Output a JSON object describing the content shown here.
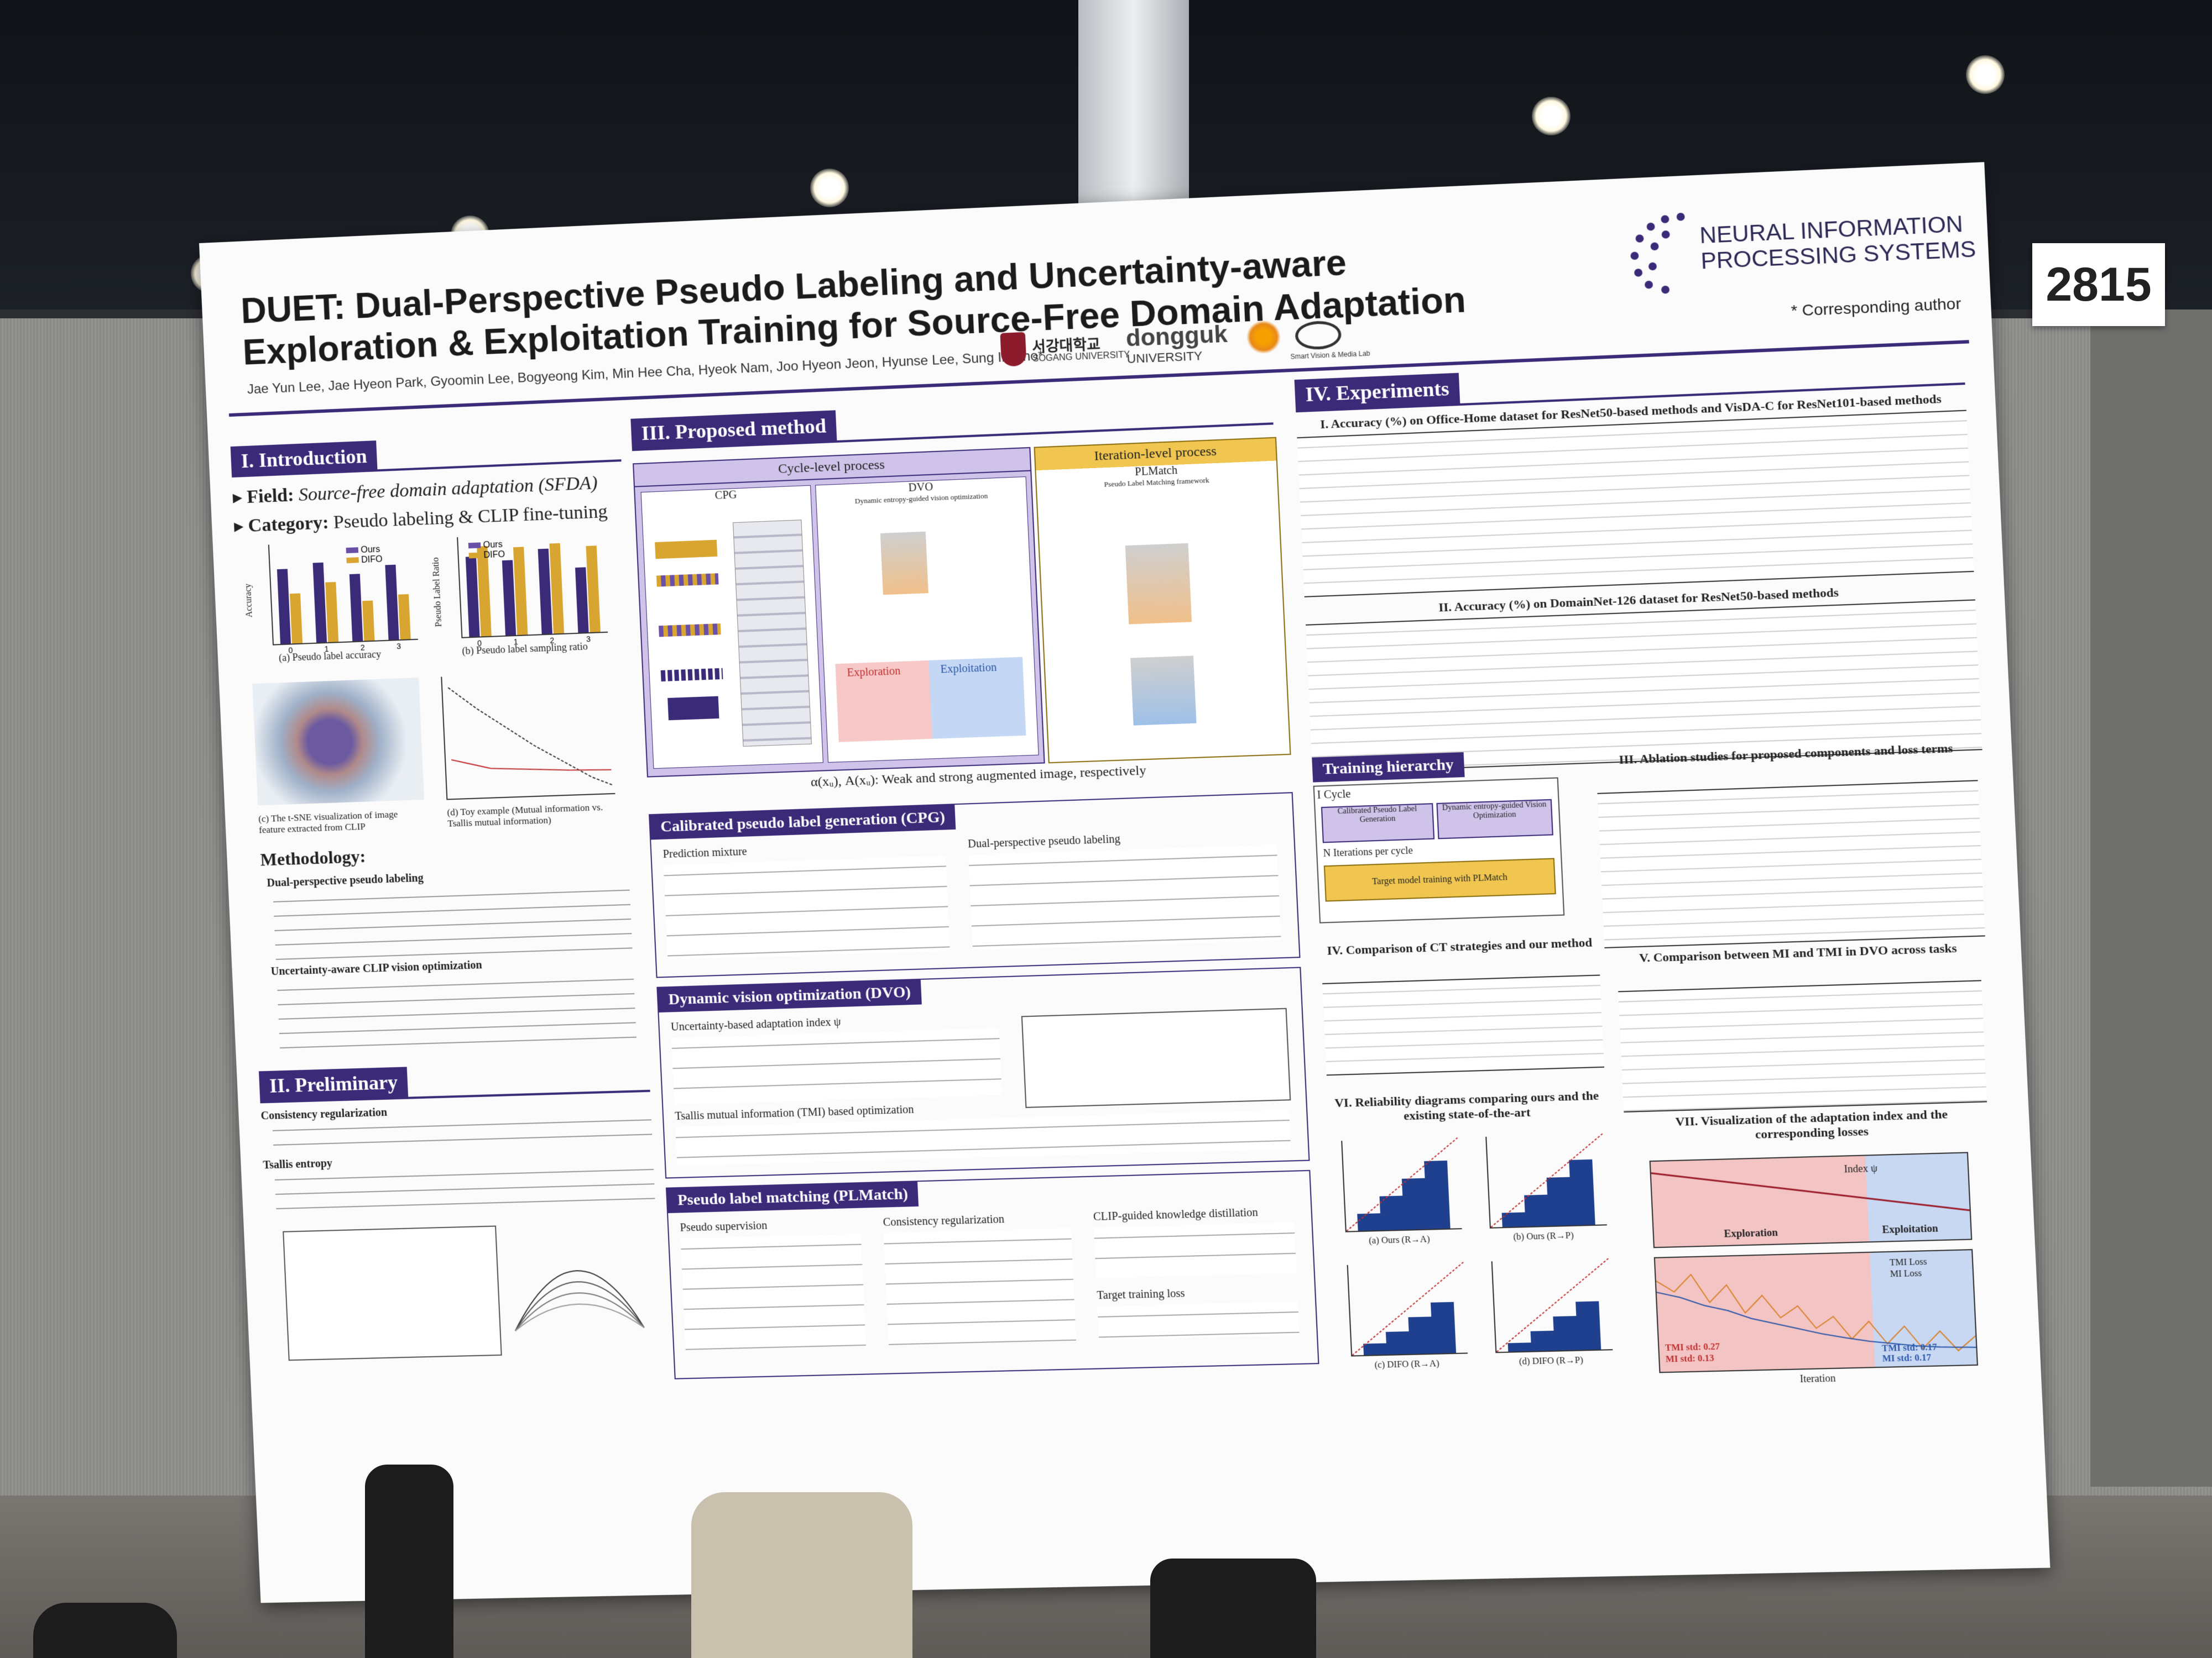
{
  "booth": {
    "number": "2815"
  },
  "poster": {
    "title_line1": "DUET: Dual-Perspective Pseudo Labeling and Uncertainty-aware",
    "title_line2": "Exploration & Exploitation Training for Source-Free Domain Adaptation",
    "authors": "Jae Yun Lee, Jae Hyeon Park, Gyoomin Lee, Bogyeong Kim, Min Hee Cha, Hyeok Nam, Joo Hyeon Jeon, Hyunse Lee, Sung In Cho*",
    "corresponding": "* Corresponding author",
    "logos": {
      "neurips_line1": "NEURAL INFORMATION",
      "neurips_line2": "PROCESSING SYSTEMS",
      "sogang_kr": "서강대학교",
      "sogang_en": "SOGANG UNIVERSITY",
      "dongguk_line1": "dongguk",
      "dongguk_line2": "UNIVERSITY",
      "lab": "Smart Vision & Media Lab"
    },
    "intro": {
      "heading": "I. Introduction",
      "field_label": "Field:",
      "field_value": "Source-free domain adaptation (SFDA)",
      "category_label": "Category:",
      "category_value": "Pseudo labeling & CLIP fine-tuning",
      "chart_a_caption": "(a) Pseudo label accuracy",
      "chart_b_caption": "(b) Pseudo label sampling ratio",
      "chart_c_caption": "(c) The t-SNE visualization of image feature extracted from CLIP",
      "chart_d_caption": "(d) Toy example (Mutual information vs. Tsallis mutual information)",
      "legend_ours": "Ours",
      "legend_difo": "DIFO",
      "ylabel_a": "Accuracy",
      "ylabel_b": "Pseudo Label Ratio",
      "methodology": "Methodology:",
      "m1": "Dual-perspective pseudo labeling",
      "m2": "Uncertainty-aware CLIP vision optimization"
    },
    "prelim": {
      "heading": "II. Preliminary",
      "p1": "Consistency regularization",
      "p2": "Tsallis entropy"
    },
    "method": {
      "heading": "III. Proposed method",
      "cycle": "Cycle-level process",
      "iteration": "Iteration-level process",
      "cpg": "CPG",
      "dvo": "DVO",
      "dvo_sub": "Dynamic entropy-guided vision optimization",
      "plmatch": "PLMatch",
      "plmatch_sub": "Pseudo Label Matching framework",
      "exploration": "Exploration",
      "exploitation": "Exploitation",
      "caption": "α(xᵤ), A(xᵤ): Weak and strong augmented image, respectively",
      "cpg_heading": "Calibrated pseudo label generation (CPG)",
      "cpg_l": "Prediction mixture",
      "cpg_r": "Dual-perspective pseudo labeling",
      "dvo_heading": "Dynamic vision optimization (DVO)",
      "dvo_l": "Uncertainty-based adaptation index ψ",
      "dvo_t": "Tsallis mutual information (TMI) based optimization",
      "plm_heading": "Pseudo label matching (PLMatch)",
      "plm_a": "Pseudo supervision",
      "plm_b": "Consistency regularization",
      "plm_c": "CLIP-guided knowledge distillation",
      "plm_d": "Target training loss"
    },
    "experiments": {
      "heading": "IV. Experiments",
      "t1": "I. Accuracy (%) on Office-Home dataset for ResNet50-based methods and VisDA-C for ResNet101-based methods",
      "t2": "II. Accuracy (%) on DomainNet-126 dataset for ResNet50-based methods",
      "t3": "III. Ablation studies for proposed components and loss terms",
      "t4": "IV. Comparison of CT strategies and our method",
      "t5": "V. Comparison between MI and TMI in DVO across tasks",
      "t6": "VI. Reliability diagrams comparing ours and the existing state-of-the-art",
      "t7": "VII. Visualization of the adaptation index and the corresponding losses",
      "training_hierarchy": "Training hierarchy",
      "cycle_label": "I Cycle",
      "th_cpg": "Calibrated Pseudo Label Generation",
      "th_dvo": "Dynamic entropy-guided Vision Optimization",
      "th_iter": "N Iterations per cycle",
      "th_plm": "Target model training with PLMatch",
      "rel_a": "(a) Ours (R→A)",
      "rel_b": "(b) Ours (R→P)",
      "rel_c": "(c) DIFO (R→A)",
      "rel_d": "(d) DIFO (R→P)",
      "viz_index": "Index ψ",
      "viz_explore": "Exploration",
      "viz_exploit": "Exploitation",
      "viz_tmi_loss": "TMI Loss",
      "viz_mi_loss": "MI Loss",
      "viz_tmi_std": "TMI std: 0.27",
      "viz_mi_std": "MI std: 0.13",
      "viz_tmi_std2": "TMI std: 0.17",
      "viz_mi_std2": "MI std: 0.17",
      "viz_xlabel": "Iteration"
    }
  },
  "chart_data": [
    {
      "type": "bar",
      "categories": [
        "0",
        "1",
        "2",
        "3"
      ],
      "series": [
        {
          "name": "Ours",
          "values": [
            0.9,
            0.92,
            0.87,
            0.9
          ]
        },
        {
          "name": "DIFO",
          "values": [
            0.8,
            0.84,
            0.76,
            0.78
          ]
        }
      ],
      "ylabel": "Accuracy",
      "ylim": [
        0.6,
        1.0
      ]
    },
    {
      "type": "bar",
      "categories": [
        "0",
        "1",
        "2",
        "3"
      ],
      "series": [
        {
          "name": "Ours",
          "values": [
            0.8,
            0.75,
            0.85,
            0.65
          ]
        },
        {
          "name": "DIFO",
          "values": [
            0.9,
            0.88,
            0.9,
            0.86
          ]
        }
      ],
      "ylabel": "Pseudo Label Ratio",
      "ylim": [
        0.0,
        1.0
      ]
    }
  ],
  "colors": {
    "primary": "#3a2a78",
    "gold": "#d7a530",
    "lavender": "#cfc3ea",
    "board": "#8f8f8d"
  }
}
